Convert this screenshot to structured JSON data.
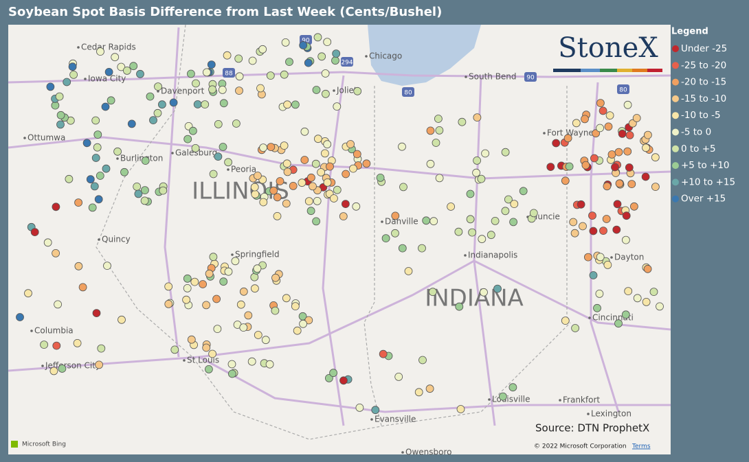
{
  "title": "Soybean Spot Basis Difference from Last Week (Cents/Bushel)",
  "legend": {
    "title": "Legend",
    "items": [
      {
        "label": "Under -25",
        "color": "#c0282d"
      },
      {
        "label": "-25 to -20",
        "color": "#e8604c"
      },
      {
        "label": "-20 to -15",
        "color": "#f0a060"
      },
      {
        "label": "-15 to -10",
        "color": "#f5c98a"
      },
      {
        "label": "-10 to -5",
        "color": "#f7e6a8"
      },
      {
        "label": "-5 to 0",
        "color": "#eef2c8"
      },
      {
        "label": "0 to +5",
        "color": "#cfe3a8"
      },
      {
        "label": "+5 to +10",
        "color": "#9ccc94"
      },
      {
        "label": "+10 to +15",
        "color": "#6aa7a8"
      },
      {
        "label": "Over +15",
        "color": "#3a78b0"
      }
    ]
  },
  "logo": "StoneX",
  "states": [
    "ILLINOIS",
    "INDIANA"
  ],
  "places": [
    "Cedar Rapids",
    "Iowa City",
    "Davenport",
    "Ottumwa",
    "Burlington",
    "Galesburg",
    "Peoria",
    "Quincy",
    "Springfield",
    "Columbia",
    "Jefferson City",
    "St Louis",
    "Chicago",
    "Joliet",
    "South Bend",
    "Fort Wayne",
    "Danville",
    "Muncie",
    "Indianapolis",
    "Dayton",
    "Cincinnati",
    "Louisville",
    "Frankfort",
    "Lexington",
    "Evansville",
    "Owensboro"
  ],
  "highways": [
    "90",
    "294",
    "88",
    "80",
    "90",
    "80"
  ],
  "source": "Source: DTN ProphetX",
  "attribution": {
    "bing": "Microsoft Bing",
    "copyright": "© 2022 Microsoft Corporation",
    "terms": "Terms"
  }
}
